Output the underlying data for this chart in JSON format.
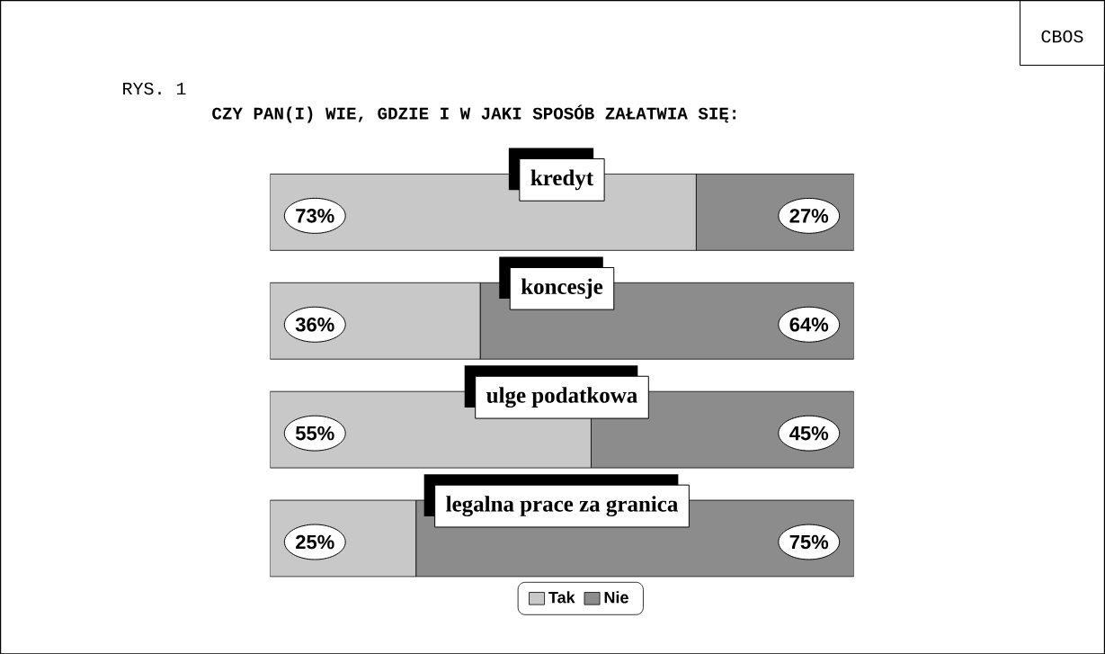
{
  "chart_data": {
    "type": "bar",
    "orientation": "horizontal",
    "stacked": true,
    "title": "CZY PAN(I) WIE, GDZIE I W JAKI SPOSÓB ZAŁATWIA SIĘ:",
    "annotations": [
      "RYS. 1",
      "CBOS"
    ],
    "categories": [
      "kredyt",
      "koncesje",
      "ulge podatkowa",
      "legalna prace za granica"
    ],
    "xlim": [
      0,
      100
    ],
    "tick_labels": false,
    "legend": "bottom",
    "series": [
      {
        "name": "Tak",
        "color": "#c8c8c8",
        "values": [
          73,
          36,
          55,
          25
        ],
        "value_labels": [
          "73%",
          "36%",
          "55%",
          "25%"
        ]
      },
      {
        "name": "Nie",
        "color": "#8c8c8c",
        "values": [
          27,
          64,
          45,
          75
        ],
        "value_labels": [
          "27%",
          "64%",
          "45%",
          "75%"
        ]
      }
    ]
  }
}
